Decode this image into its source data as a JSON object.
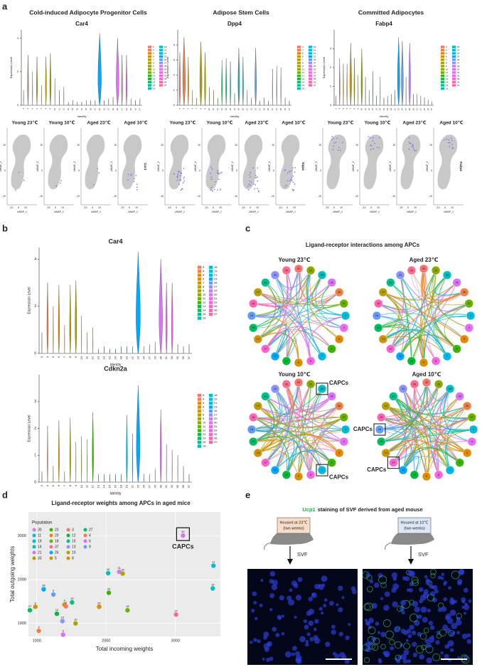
{
  "panel_labels": [
    "a",
    "b",
    "c",
    "d",
    "e"
  ],
  "cluster_colors": [
    "#f8766d",
    "#ef7f49",
    "#e58700",
    "#d89000",
    "#c99800",
    "#b79f00",
    "#a3a500",
    "#8aab00",
    "#6bb100",
    "#39b600",
    "#00ba38",
    "#00bd5f",
    "#00c08b",
    "#00c0af",
    "#00bfc4",
    "#00bcd8",
    "#00b8e7",
    "#00a9ff",
    "#619cff",
    "#8b93ff",
    "#c77cff",
    "#db72fb",
    "#e76bf3",
    "#f564e3",
    "#fd61d1",
    "#ff64b0",
    "#ff6c91"
  ],
  "a": {
    "groups": [
      {
        "title": "Cold-induced Adipocyte Progenitor Cells",
        "gene": "Car4"
      },
      {
        "title": "Adipose Stem Cells",
        "gene": "Dpp4"
      },
      {
        "title": "Committed Adipocytes",
        "gene": "Fabp4"
      }
    ],
    "conditions": [
      "Young 23℃",
      "Young 10℃",
      "Aged 23℃",
      "Aged 10℃"
    ],
    "umap_x": "UMAP_1",
    "umap_y": "UMAP_2",
    "umap_ticks": [
      -10,
      0,
      10
    ]
  },
  "chart_data": [
    {
      "type": "violin",
      "title": "Car4",
      "ylabel": "Expression Level",
      "xlabel": "Identity",
      "categories": [
        "3",
        "4",
        "5",
        "6",
        "7",
        "8",
        "9",
        "10",
        "11",
        "12",
        "13",
        "14",
        "15",
        "16",
        "18",
        "19",
        "21",
        "23",
        "26",
        "27",
        "29",
        "30",
        "31",
        "33",
        "35",
        "36",
        "37"
      ],
      "values": [
        0.9,
        3,
        2,
        2.9,
        1.2,
        2.9,
        3.1,
        1.6,
        0.9,
        1.1,
        0.2,
        0.3,
        0.2,
        0.2,
        0.3,
        0.3,
        0.3,
        4.3,
        0.3,
        0.4,
        0.5,
        4,
        3,
        3,
        0.4,
        0.3,
        0.4
      ],
      "ylim": [
        0,
        4.5
      ],
      "yticks": [
        0,
        2,
        4
      ]
    },
    {
      "type": "violin",
      "title": "Dpp4",
      "ylabel": "Expression Level",
      "xlabel": "Identity",
      "categories": [
        "3",
        "4",
        "5",
        "6",
        "7",
        "8",
        "9",
        "10",
        "11",
        "12",
        "13",
        "14",
        "15",
        "16",
        "18",
        "19",
        "21",
        "23",
        "26",
        "27",
        "29",
        "30",
        "31",
        "33",
        "35",
        "36",
        "37"
      ],
      "values": [
        3.5,
        4.5,
        3.2,
        1.0,
        0.5,
        4.2,
        3.5,
        1.2,
        1.0,
        0.5,
        3.0,
        3.1,
        2.9,
        0.8,
        3.8,
        3.2,
        1.0,
        0.5,
        3.8,
        0.3,
        0.5,
        0.3,
        2.4,
        2.6,
        2.5,
        0.5,
        0.3
      ],
      "ylim": [
        0,
        5
      ],
      "yticks": [
        0,
        1,
        2,
        3,
        4
      ]
    },
    {
      "type": "violin",
      "title": "Fabp4",
      "ylabel": "Expression Level",
      "xlabel": "Identity",
      "categories": [
        "3",
        "4",
        "5",
        "6",
        "7",
        "8",
        "9",
        "10",
        "11",
        "12",
        "13",
        "14",
        "15",
        "16",
        "18",
        "19",
        "21",
        "23",
        "26",
        "27",
        "29",
        "30",
        "31",
        "33",
        "35",
        "36",
        "37"
      ],
      "values": [
        0.5,
        2.5,
        2.2,
        2.2,
        3.3,
        2.5,
        1.6,
        3.0,
        1.5,
        0.8,
        1.8,
        0.5,
        1.5,
        0.4,
        0.5,
        0.6,
        0.8,
        3.6,
        3.4,
        1.5,
        3.3,
        0.6,
        0.6,
        0.5,
        0.4,
        0.3,
        0.2
      ],
      "ylim": [
        0,
        4
      ],
      "yticks": [
        0,
        1,
        2,
        3
      ]
    },
    {
      "type": "violin",
      "title": "Car4",
      "ylabel": "Expression Level",
      "xlabel": "Identity",
      "categories": [
        "3",
        "4",
        "5",
        "6",
        "7",
        "8",
        "9",
        "10",
        "11",
        "12",
        "13",
        "14",
        "15",
        "16",
        "18",
        "19",
        "21",
        "23",
        "26",
        "27",
        "29",
        "30",
        "31",
        "33",
        "35",
        "36",
        "37"
      ],
      "values": [
        0.9,
        3,
        2,
        2.9,
        1.2,
        2.9,
        3.1,
        1.6,
        0.9,
        1.1,
        0.2,
        0.3,
        0.2,
        0.2,
        0.3,
        0.3,
        0.3,
        4.3,
        0.3,
        0.4,
        0.5,
        4,
        3,
        3,
        0.4,
        0.3,
        0.4
      ],
      "ylim": [
        0,
        4.5
      ],
      "yticks": [
        0,
        2,
        4
      ]
    },
    {
      "type": "violin",
      "title": "Cdkn2a",
      "ylabel": "Expression Level",
      "xlabel": "Identity",
      "categories": [
        "3",
        "4",
        "5",
        "6",
        "7",
        "8",
        "9",
        "10",
        "11",
        "12",
        "13",
        "14",
        "15",
        "16",
        "18",
        "19",
        "21",
        "23",
        "26",
        "27",
        "29",
        "30",
        "31",
        "33",
        "35",
        "36",
        "37"
      ],
      "values": [
        0.4,
        2.1,
        0.6,
        2.3,
        0.4,
        2.4,
        1.5,
        1.7,
        1.6,
        2.6,
        0.3,
        0.3,
        0.3,
        0.3,
        0.3,
        2.5,
        1.8,
        3.6,
        0.3,
        0.3,
        0.5,
        2.7,
        1.4,
        1.2,
        1.0,
        0.6,
        0.3
      ],
      "ylim": [
        0,
        4
      ],
      "yticks": [
        0,
        1,
        2,
        3
      ]
    },
    {
      "type": "scatter",
      "title": "Ligand-receptor weights among APCs in aged mice",
      "xlabel": "Total incoming weights",
      "ylabel": "Total outgoing weights",
      "legend_title": "Population",
      "annotation": "CAPCs",
      "xlim": [
        880,
        3650
      ],
      "ylim": [
        700,
        3550
      ],
      "xticks": [
        1000,
        2000,
        3000
      ],
      "yticks": [
        1000,
        2000,
        3000
      ],
      "series": [
        {
          "name": "30",
          "color": "#db72fb",
          "x": 3110,
          "y": 3010
        },
        {
          "name": "11",
          "color": "#00bcd8",
          "x": 3550,
          "y": 2320
        },
        {
          "name": "19",
          "color": "#00bfc4",
          "x": 3540,
          "y": 1800
        },
        {
          "name": "16",
          "color": "#00c0af",
          "x": 2030,
          "y": 2150
        },
        {
          "name": "21",
          "color": "#c77cff",
          "x": 2190,
          "y": 2180
        },
        {
          "name": "33",
          "color": "#b79f00",
          "x": 2240,
          "y": 2140
        },
        {
          "name": "23",
          "color": "#39b600",
          "x": 2040,
          "y": 1700
        },
        {
          "name": "20",
          "color": "#e58700",
          "x": 1900,
          "y": 1380
        },
        {
          "name": "18",
          "color": "#6bb100",
          "x": 2310,
          "y": 1300
        },
        {
          "name": "37",
          "color": "#ff6c91",
          "x": 3010,
          "y": 1200
        },
        {
          "name": "26",
          "color": "#00a9ff",
          "x": 1100,
          "y": 1780
        },
        {
          "name": "5",
          "color": "#c99800",
          "x": 1400,
          "y": 1430
        },
        {
          "name": "3",
          "color": "#f8766d",
          "x": 1420,
          "y": 1390
        },
        {
          "name": "12",
          "color": "#00ba38",
          "x": 1290,
          "y": 1220
        },
        {
          "name": "15",
          "color": "#00c08b",
          "x": 1510,
          "y": 1480
        },
        {
          "name": "13",
          "color": "#8b93ff",
          "x": 1370,
          "y": 1050
        },
        {
          "name": "10",
          "color": "#a3a500",
          "x": 1560,
          "y": 1000
        },
        {
          "name": "8",
          "color": "#d89000",
          "x": 980,
          "y": 1380
        },
        {
          "name": "27",
          "color": "#00bd5f",
          "x": 900,
          "y": 1300
        },
        {
          "name": "4",
          "color": "#ef7f49",
          "x": 1030,
          "y": 830
        },
        {
          "name": "6",
          "color": "#e76bf3",
          "x": 1380,
          "y": 740
        },
        {
          "name": "9",
          "color": "#619cff",
          "x": 1240,
          "y": 1660
        }
      ]
    }
  ],
  "c": {
    "title": "Ligand-receptor interactions among APCs",
    "networks": [
      "Young 23℃",
      "Aged 23℃",
      "Young 10℃",
      "Aged 10℃"
    ],
    "nodes": [
      "30",
      "31",
      "33",
      "35",
      "36",
      "37",
      "3",
      "4",
      "5",
      "6",
      "7",
      "8",
      "9",
      "10",
      "11",
      "12",
      "13",
      "15",
      "16",
      "18",
      "19",
      "21",
      "23",
      "26"
    ],
    "callout": "CAPCs"
  },
  "e": {
    "title_gene": "Ucp1",
    "title_rest": "staining of SVF derived from aged mouse",
    "conditions": [
      [
        "Housed at 23℃",
        "(two weeks)"
      ],
      [
        "Housed at 10℃",
        "(two weeks)"
      ]
    ],
    "arrow_label": "SVF"
  }
}
